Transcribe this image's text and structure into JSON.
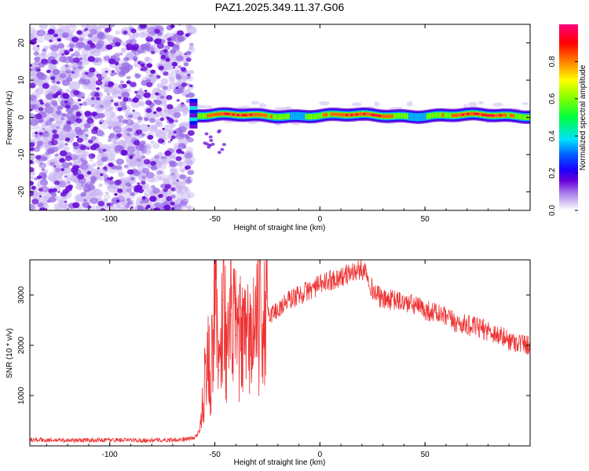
{
  "figure_title": "PAZ1.2025.349.11.37.G06",
  "chart_data": [
    {
      "type": "heatmap",
      "title": "PAZ1.2025.349.11.37.G06",
      "xlabel": "Height of straight line (km)",
      "ylabel": "Frequency (Hz)",
      "xlim": [
        -138,
        100
      ],
      "ylim": [
        -25,
        25
      ],
      "xticks": [
        -100,
        -50,
        0,
        50
      ],
      "yticks": [
        -20,
        -10,
        0,
        10,
        20
      ],
      "colorbar": {
        "label": "Normalized spectral amplitude",
        "range": [
          0,
          1
        ],
        "ticks": [
          0.0,
          0.2,
          0.4,
          0.6,
          0.8
        ],
        "tick_labels": [
          "0.0",
          "0.2",
          "0.4",
          "0.6",
          "0.8"
        ],
        "colormap": [
          "#ffffff",
          "#b89cf0",
          "#6a00d8",
          "#0000ff",
          "#00e0ff",
          "#00ff00",
          "#ffff00",
          "#ff8000",
          "#ff0000",
          "#ff0080"
        ]
      },
      "features": [
        {
          "name": "noise-region",
          "x_range": [
            -138,
            -61
          ],
          "freq_range": [
            -25,
            25
          ],
          "amplitude_range": [
            0.05,
            0.15
          ]
        },
        {
          "name": "carrier-tone",
          "x_range": [
            -61,
            100
          ],
          "freq_center": 0.5,
          "freq_width": 3,
          "amplitude_range": [
            0.2,
            1.0
          ]
        },
        {
          "name": "transition-tail",
          "x_range": [
            -55,
            -45
          ],
          "freq_range": [
            -10,
            -3
          ],
          "amplitude_range": [
            0.1,
            0.2
          ]
        }
      ]
    },
    {
      "type": "line",
      "title": "",
      "xlabel": "Height of straight line (km)",
      "ylabel": "SNR (10 * v/v)",
      "xlim": [
        -138,
        100
      ],
      "ylim": [
        0,
        3700
      ],
      "xticks": [
        -100,
        -50,
        0,
        50
      ],
      "yticks": [
        1000,
        2000,
        3000
      ],
      "color": "#ee3333",
      "series": [
        {
          "name": "SNR",
          "x": [
            -138,
            -120,
            -100,
            -80,
            -65,
            -60,
            -57,
            -55,
            -53,
            -52,
            -51,
            -50,
            -48,
            -46,
            -44,
            -42,
            -40,
            -35,
            -30,
            -25,
            -20,
            -15,
            -10,
            -5,
            0,
            5,
            10,
            15,
            20,
            22,
            25,
            30,
            35,
            40,
            45,
            50,
            55,
            60,
            65,
            70,
            75,
            80,
            85,
            90,
            95,
            100
          ],
          "values": [
            120,
            110,
            120,
            110,
            130,
            150,
            300,
            1200,
            2300,
            800,
            2600,
            3700,
            1500,
            2900,
            1800,
            2600,
            2200,
            2000,
            2400,
            2600,
            2700,
            2900,
            3000,
            3100,
            3200,
            3300,
            3350,
            3450,
            3500,
            3500,
            3100,
            2900,
            2900,
            2850,
            2800,
            2700,
            2650,
            2550,
            2450,
            2400,
            2350,
            2300,
            2200,
            2100,
            2050,
            2000
          ]
        }
      ]
    }
  ]
}
